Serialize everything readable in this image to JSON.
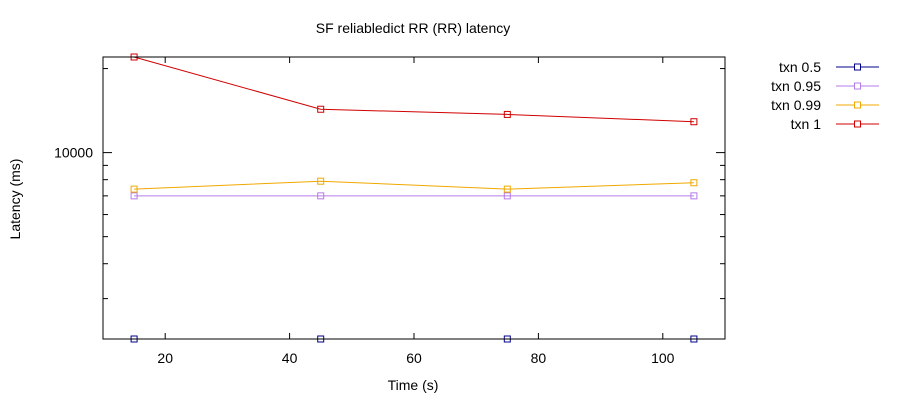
{
  "chart_data": {
    "type": "line",
    "title": "SF reliabledict RR (RR)  latency",
    "xlabel": "Time (s)",
    "ylabel": "Latency (ms)",
    "xlim": [
      10,
      110
    ],
    "x_ticks": [
      20,
      40,
      60,
      80,
      100
    ],
    "y_scale": "log",
    "ylim": [
      2150,
      22000
    ],
    "y_tick_labels": [
      {
        "value": 10000,
        "label": "10000"
      }
    ],
    "y_minor_ticks": [
      3000,
      4000,
      5000,
      6000,
      7000,
      8000,
      9000,
      20000
    ],
    "grid": false,
    "legend_position": "outside-right",
    "series": [
      {
        "name": "txn 0.5",
        "color": "#00008b",
        "marker": "square-open",
        "show_line": false,
        "x": [
          15,
          45,
          75,
          105
        ],
        "y": [
          2150,
          2150,
          2150,
          2150
        ]
      },
      {
        "name": "txn 0.95",
        "color": "#b57be8",
        "marker": "square-open",
        "x": [
          15,
          45,
          75,
          105
        ],
        "y": [
          7000,
          7000,
          7000,
          7000
        ]
      },
      {
        "name": "txn 0.99",
        "color": "#f0a800",
        "marker": "square-open",
        "x": [
          15,
          45,
          75,
          105
        ],
        "y": [
          7400,
          7900,
          7400,
          7800
        ]
      },
      {
        "name": "txn 1",
        "color": "#d00000",
        "marker": "square-open",
        "x": [
          15,
          45,
          75,
          105
        ],
        "y": [
          22000,
          14300,
          13700,
          12900
        ]
      }
    ]
  }
}
